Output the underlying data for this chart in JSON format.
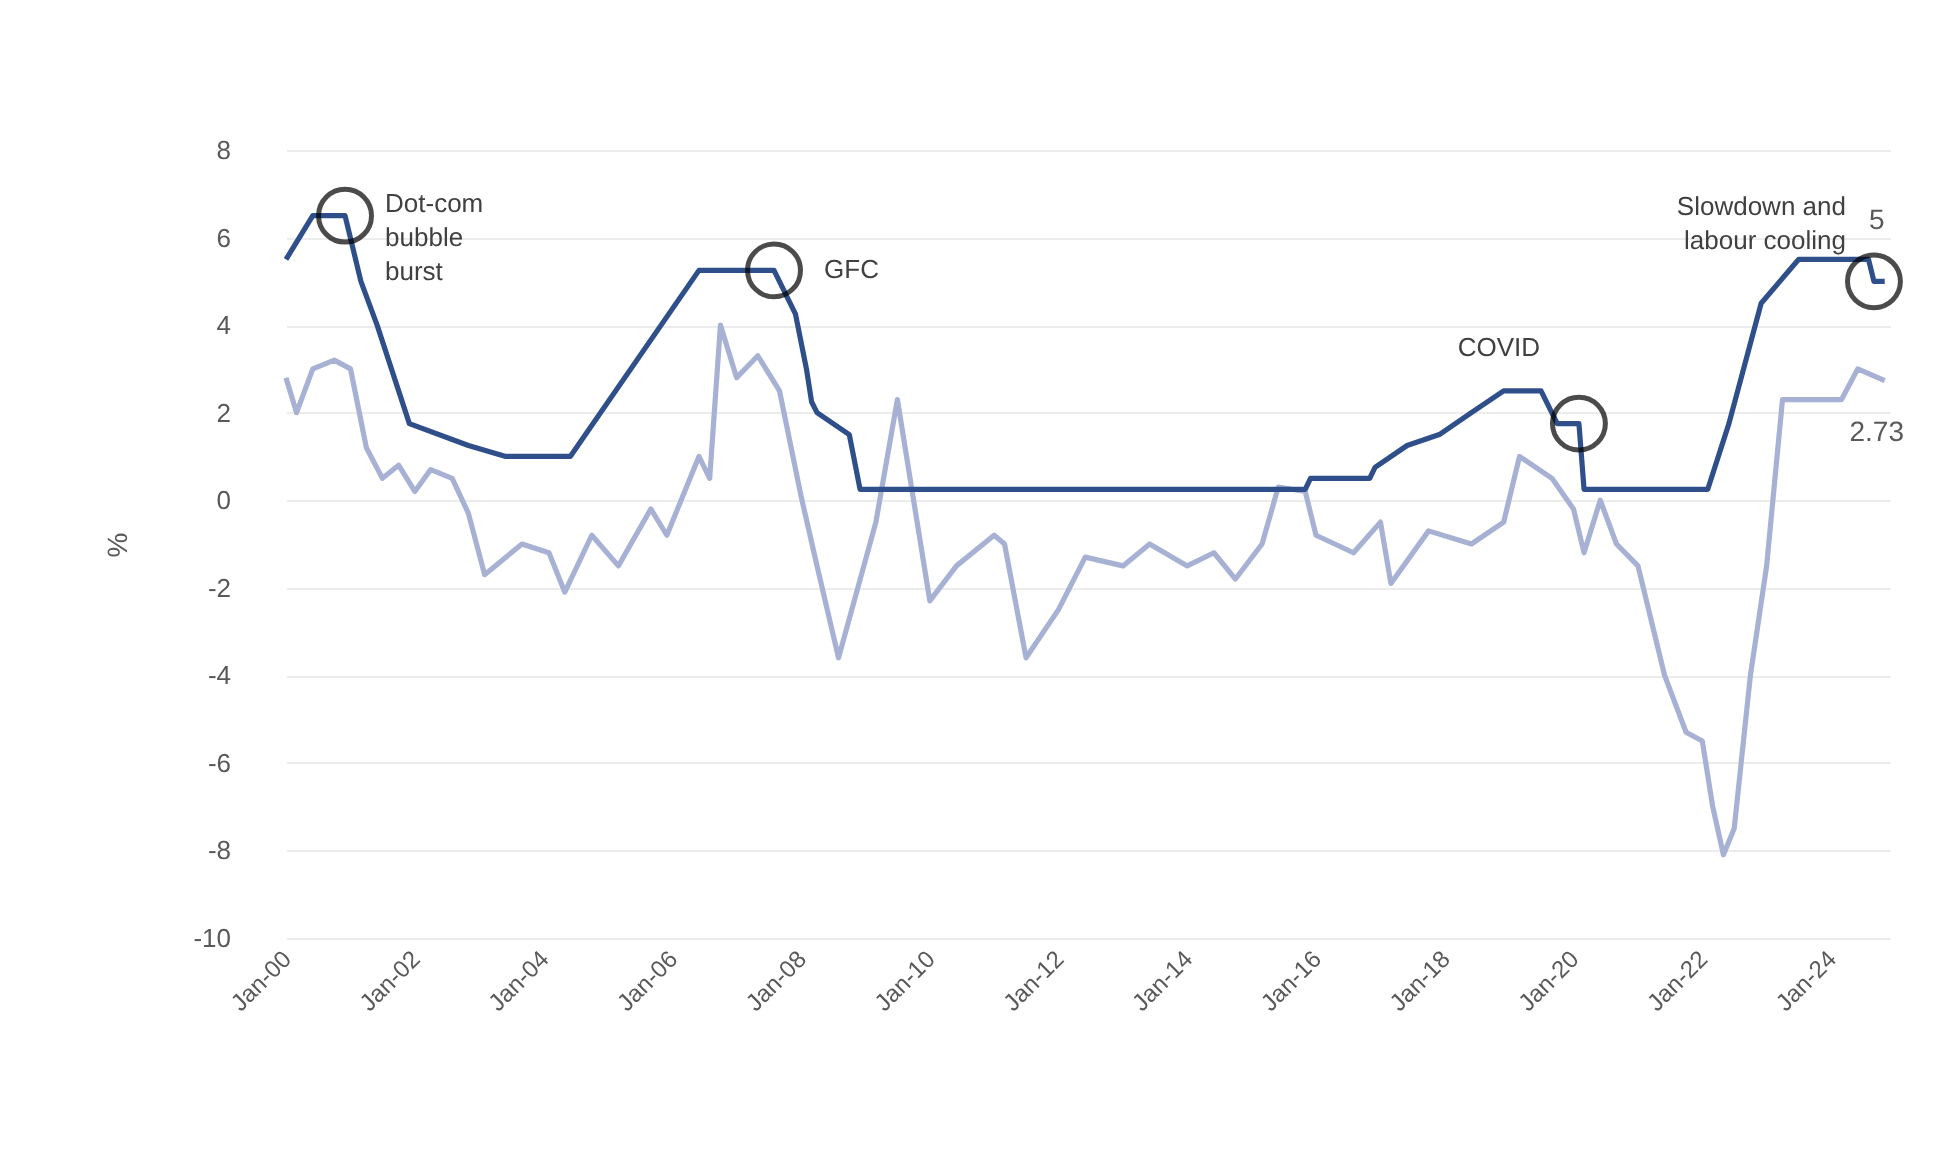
{
  "chart_data": {
    "type": "line",
    "ylabel": "%",
    "xlim": [
      "2000-01",
      "2024-12"
    ],
    "ylim": [
      -10,
      8
    ],
    "yticks": [
      -10,
      -8,
      -6,
      -4,
      -2,
      0,
      2,
      4,
      6,
      8
    ],
    "xticks": [
      {
        "value": "2000-01",
        "label": "Jan-00"
      },
      {
        "value": "2002-01",
        "label": "Jan-02"
      },
      {
        "value": "2004-01",
        "label": "Jan-04"
      },
      {
        "value": "2006-01",
        "label": "Jan-06"
      },
      {
        "value": "2008-01",
        "label": "Jan-08"
      },
      {
        "value": "2010-01",
        "label": "Jan-10"
      },
      {
        "value": "2012-01",
        "label": "Jan-12"
      },
      {
        "value": "2014-01",
        "label": "Jan-14"
      },
      {
        "value": "2016-01",
        "label": "Jan-16"
      },
      {
        "value": "2018-01",
        "label": "Jan-18"
      },
      {
        "value": "2020-01",
        "label": "Jan-20"
      },
      {
        "value": "2022-01",
        "label": "Jan-22"
      },
      {
        "value": "2024-01",
        "label": "Jan-24"
      }
    ],
    "grid": "y",
    "line_style": "solid",
    "marker": "none",
    "series": [
      {
        "color": "#a7b1d3",
        "x": [
          "2000-01",
          "2000-03",
          "2000-06",
          "2000-10",
          "2001-01",
          "2001-04",
          "2001-07",
          "2001-10",
          "2002-01",
          "2002-04",
          "2002-08",
          "2002-11",
          "2003-02",
          "2003-09",
          "2004-02",
          "2004-05",
          "2004-10",
          "2005-03",
          "2005-09",
          "2005-12",
          "2006-06",
          "2006-08",
          "2006-10",
          "2007-01",
          "2007-05",
          "2007-09",
          "2008-01",
          "2008-04",
          "2008-08",
          "2009-03",
          "2009-07",
          "2010-01",
          "2010-06",
          "2011-01",
          "2011-03",
          "2011-07",
          "2012-01",
          "2012-06",
          "2013-01",
          "2013-06",
          "2014-01",
          "2014-06",
          "2014-10",
          "2015-03",
          "2015-06",
          "2015-11",
          "2016-01",
          "2016-08",
          "2017-01",
          "2017-03",
          "2017-10",
          "2018-06",
          "2018-12",
          "2019-03",
          "2019-09",
          "2020-01",
          "2020-03",
          "2020-06",
          "2020-09",
          "2021-01",
          "2021-06",
          "2021-10",
          "2022-01",
          "2022-03",
          "2022-05",
          "2022-07",
          "2022-10",
          "2023-01",
          "2023-04",
          "2023-09",
          "2024-03",
          "2024-06",
          "2024-11"
        ],
        "values": [
          2.8,
          2.0,
          3.0,
          3.2,
          3.0,
          1.2,
          0.5,
          0.8,
          0.2,
          0.7,
          0.5,
          -0.3,
          -1.7,
          -1.0,
          -1.2,
          -2.1,
          -0.8,
          -1.5,
          -0.2,
          -0.8,
          1.0,
          0.5,
          4.0,
          2.8,
          3.3,
          2.5,
          0.1,
          -1.5,
          -3.6,
          -0.5,
          2.3,
          -2.3,
          -1.5,
          -0.8,
          -1.0,
          -3.6,
          -2.5,
          -1.3,
          -1.5,
          -1.0,
          -1.5,
          -1.2,
          -1.8,
          -1.0,
          0.3,
          0.2,
          -0.8,
          -1.2,
          -0.5,
          -1.9,
          -0.7,
          -1.0,
          -0.5,
          1.0,
          0.5,
          -0.2,
          -1.2,
          0.0,
          -1.0,
          -1.5,
          -4.0,
          -5.3,
          -5.5,
          -7.0,
          -8.1,
          -7.5,
          -4.0,
          -1.5,
          2.3,
          2.3,
          2.3,
          3.0,
          2.73
        ],
        "value_labels": [
          null,
          null,
          null,
          null,
          null,
          null,
          null,
          null,
          null,
          null,
          null,
          null,
          null,
          null,
          null,
          null,
          null,
          null,
          null,
          null,
          null,
          null,
          null,
          null,
          null,
          null,
          null,
          null,
          null,
          null,
          null,
          null,
          null,
          null,
          null,
          null,
          null,
          null,
          null,
          null,
          null,
          null,
          null,
          null,
          null,
          null,
          null,
          null,
          null,
          null,
          null,
          null,
          null,
          null,
          null,
          null,
          null,
          null,
          null,
          null,
          null,
          null,
          null,
          null,
          null,
          null,
          null,
          null,
          null,
          null,
          null,
          null,
          "2.73"
        ]
      },
      {
        "color": "#2f4f8a",
        "x": [
          "2000-01",
          "2000-06",
          "2000-12",
          "2001-03",
          "2001-06",
          "2001-12",
          "2002-11",
          "2003-06",
          "2004-06",
          "2006-06",
          "2007-08",
          "2007-12",
          "2008-02",
          "2008-03",
          "2008-04",
          "2008-10",
          "2008-12",
          "2015-11",
          "2015-12",
          "2016-11",
          "2016-12",
          "2017-06",
          "2017-12",
          "2018-06",
          "2018-12",
          "2019-07",
          "2019-10",
          "2020-02",
          "2020-03",
          "2022-02",
          "2022-06",
          "2022-12",
          "2023-07",
          "2024-08",
          "2024-09",
          "2024-11"
        ],
        "values": [
          5.5,
          6.5,
          6.5,
          5.0,
          4.0,
          1.75,
          1.25,
          1.0,
          1.0,
          5.25,
          5.25,
          4.25,
          3.0,
          2.25,
          2.0,
          1.5,
          0.25,
          0.25,
          0.5,
          0.5,
          0.75,
          1.25,
          1.5,
          2.0,
          2.5,
          2.5,
          1.75,
          1.75,
          0.25,
          0.25,
          1.75,
          4.5,
          5.5,
          5.5,
          5.0,
          5.0
        ],
        "value_labels": [
          null,
          null,
          null,
          null,
          null,
          null,
          null,
          null,
          null,
          null,
          null,
          null,
          null,
          null,
          null,
          null,
          null,
          null,
          null,
          null,
          null,
          null,
          null,
          null,
          null,
          null,
          null,
          null,
          null,
          null,
          null,
          null,
          null,
          null,
          null,
          "5"
        ]
      }
    ],
    "annotations": [
      {
        "text": "Dot-com\nbubble\nburst",
        "x": "2000-12",
        "y": 6.5
      },
      {
        "text": "GFC",
        "x": "2007-08",
        "y": 5.25
      },
      {
        "text": "COVID",
        "x": "2020-02",
        "y": 1.75
      },
      {
        "text": "Slowdown and\nlabour cooling",
        "x": "2024-09",
        "y": 5.0
      }
    ]
  }
}
